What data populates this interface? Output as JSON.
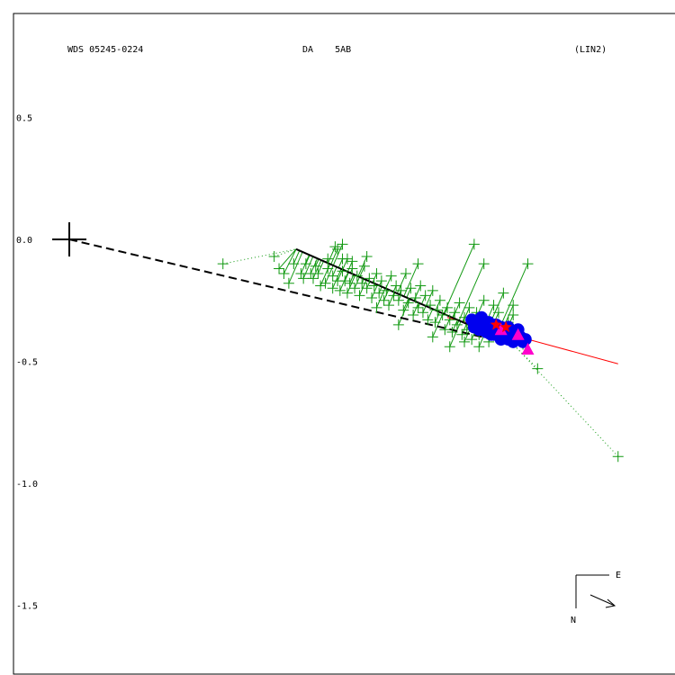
{
  "chart_data": {
    "type": "scatter",
    "header": {
      "left": "WDS 05245-0224",
      "center": "DA    5AB",
      "right": "(LIN2)"
    },
    "ytick_labels": [
      "0.5",
      "0.0",
      "-0.5",
      "-1.0",
      "-1.5"
    ],
    "ytick_values": [
      0.5,
      0.0,
      -0.5,
      -1.0,
      -1.5
    ],
    "ylim": [
      -1.78,
      0.9
    ],
    "xlim": [
      -0.23,
      2.47
    ],
    "grid": false,
    "primary_star": {
      "x": 0.0,
      "y": 0.0
    },
    "compass": {
      "east_label": "E",
      "north_label": "N"
    },
    "colors": {
      "micrometric": "#119911",
      "speckle": "#0000ee",
      "hipparcos": "#ff00cc",
      "recent": "#ff0000",
      "orbit_fit": "#000000",
      "linear_fit": "#ff0000",
      "frame": "#000000"
    },
    "linear_fit_line": {
      "x": [
        1.55,
        2.25
      ],
      "y": [
        -0.32,
        -0.51
      ]
    },
    "black_fit_line": {
      "x": [
        0.93,
        1.82
      ],
      "y": [
        -0.04,
        -0.43
      ]
    },
    "dashed_line": {
      "x": [
        0.0,
        1.82
      ],
      "y": [
        0.0,
        -0.43
      ]
    },
    "series": [
      {
        "name": "micrometric",
        "marker": "plus",
        "points": [
          [
            0.63,
            -0.1
          ],
          [
            0.9,
            -0.18
          ],
          [
            1.01,
            -0.11
          ],
          [
            1.06,
            -0.08
          ],
          [
            1.09,
            -0.03
          ],
          [
            1.1,
            -0.04
          ],
          [
            1.12,
            -0.02
          ],
          [
            1.12,
            -0.08
          ],
          [
            1.14,
            -0.08
          ],
          [
            1.16,
            -0.09
          ],
          [
            0.84,
            -0.07
          ],
          [
            0.86,
            -0.12
          ],
          [
            0.88,
            -0.14
          ],
          [
            0.92,
            -0.1
          ],
          [
            0.95,
            -0.14
          ],
          [
            0.96,
            -0.16
          ],
          [
            0.97,
            -0.1
          ],
          [
            0.99,
            -0.14
          ],
          [
            1.0,
            -0.16
          ],
          [
            1.02,
            -0.14
          ],
          [
            1.03,
            -0.19
          ],
          [
            1.05,
            -0.18
          ],
          [
            1.06,
            -0.12
          ],
          [
            1.08,
            -0.15
          ],
          [
            1.08,
            -0.2
          ],
          [
            1.1,
            -0.17
          ],
          [
            1.11,
            -0.21
          ],
          [
            1.12,
            -0.13
          ],
          [
            1.13,
            -0.17
          ],
          [
            1.14,
            -0.22
          ],
          [
            1.15,
            -0.18
          ],
          [
            1.16,
            -0.12
          ],
          [
            1.17,
            -0.2
          ],
          [
            1.18,
            -0.15
          ],
          [
            1.19,
            -0.23
          ],
          [
            1.2,
            -0.18
          ],
          [
            1.21,
            -0.11
          ],
          [
            1.22,
            -0.2
          ],
          [
            1.23,
            -0.16
          ],
          [
            1.24,
            -0.24
          ],
          [
            1.25,
            -0.19
          ],
          [
            1.26,
            -0.14
          ],
          [
            1.27,
            -0.22
          ],
          [
            1.28,
            -0.17
          ],
          [
            1.29,
            -0.25
          ],
          [
            1.3,
            -0.21
          ],
          [
            1.31,
            -0.27
          ],
          [
            1.32,
            -0.15
          ],
          [
            1.33,
            -0.23
          ],
          [
            1.34,
            -0.19
          ],
          [
            1.35,
            -0.25
          ],
          [
            1.36,
            -0.21
          ],
          [
            1.37,
            -0.29
          ],
          [
            1.38,
            -0.14
          ],
          [
            1.39,
            -0.26
          ],
          [
            1.4,
            -0.2
          ],
          [
            1.41,
            -0.31
          ],
          [
            1.42,
            -0.24
          ],
          [
            1.43,
            -0.28
          ],
          [
            1.44,
            -0.19
          ],
          [
            1.45,
            -0.3
          ],
          [
            1.46,
            -0.23
          ],
          [
            1.47,
            -0.33
          ],
          [
            1.48,
            -0.27
          ],
          [
            1.49,
            -0.21
          ],
          [
            1.5,
            -0.34
          ],
          [
            1.51,
            -0.29
          ],
          [
            1.52,
            -0.25
          ],
          [
            1.53,
            -0.31
          ],
          [
            1.54,
            -0.37
          ],
          [
            1.55,
            -0.28
          ],
          [
            1.56,
            -0.33
          ],
          [
            1.57,
            -0.38
          ],
          [
            1.58,
            -0.3
          ],
          [
            1.59,
            -0.35
          ],
          [
            1.6,
            -0.26
          ],
          [
            1.61,
            -0.39
          ],
          [
            1.62,
            -0.32
          ],
          [
            1.63,
            -0.37
          ],
          [
            1.64,
            -0.28
          ],
          [
            1.65,
            -0.41
          ],
          [
            1.66,
            -0.35
          ],
          [
            1.67,
            -0.3
          ],
          [
            1.68,
            -0.39
          ],
          [
            1.7,
            -0.25
          ],
          [
            1.71,
            -0.33
          ],
          [
            1.72,
            -0.42
          ],
          [
            1.74,
            -0.27
          ],
          [
            1.75,
            -0.36
          ],
          [
            1.76,
            -0.3
          ],
          [
            1.78,
            -0.22
          ],
          [
            1.8,
            -0.34
          ],
          [
            1.82,
            -0.27
          ],
          [
            1.84,
            -0.38
          ],
          [
            1.86,
            -0.43
          ],
          [
            1.88,
            -0.1
          ],
          [
            1.66,
            -0.02
          ],
          [
            1.92,
            -0.53
          ],
          [
            1.22,
            -0.07
          ],
          [
            1.43,
            -0.1
          ],
          [
            1.49,
            -0.4
          ],
          [
            1.56,
            -0.44
          ],
          [
            1.7,
            -0.1
          ],
          [
            1.78,
            -0.4
          ],
          [
            1.82,
            -0.31
          ],
          [
            1.68,
            -0.44
          ],
          [
            1.62,
            -0.42
          ],
          [
            1.26,
            -0.28
          ],
          [
            1.35,
            -0.35
          ],
          [
            2.25,
            -0.89
          ]
        ]
      },
      {
        "name": "speckle",
        "marker": "dot",
        "points": [
          [
            1.65,
            -0.33
          ],
          [
            1.66,
            -0.36
          ],
          [
            1.67,
            -0.34
          ],
          [
            1.68,
            -0.37
          ],
          [
            1.69,
            -0.32
          ],
          [
            1.7,
            -0.35
          ],
          [
            1.71,
            -0.38
          ],
          [
            1.72,
            -0.34
          ],
          [
            1.73,
            -0.36
          ],
          [
            1.74,
            -0.39
          ],
          [
            1.75,
            -0.35
          ],
          [
            1.76,
            -0.38
          ],
          [
            1.77,
            -0.36
          ],
          [
            1.78,
            -0.4
          ],
          [
            1.79,
            -0.37
          ],
          [
            1.8,
            -0.41
          ],
          [
            1.81,
            -0.38
          ],
          [
            1.82,
            -0.42
          ],
          [
            1.83,
            -0.39
          ],
          [
            1.84,
            -0.41
          ],
          [
            1.85,
            -0.4
          ],
          [
            1.86,
            -0.42
          ],
          [
            1.87,
            -0.41
          ],
          [
            1.69,
            -0.37
          ],
          [
            1.73,
            -0.39
          ],
          [
            1.77,
            -0.41
          ],
          [
            1.8,
            -0.36
          ],
          [
            1.84,
            -0.37
          ]
        ]
      },
      {
        "name": "hipparcos",
        "marker": "triangle",
        "points": [
          [
            1.77,
            -0.37
          ],
          [
            1.84,
            -0.39
          ],
          [
            1.88,
            -0.45
          ]
        ]
      },
      {
        "name": "recent",
        "marker": "star",
        "points": [
          [
            1.75,
            -0.35
          ],
          [
            1.79,
            -0.36
          ]
        ]
      }
    ]
  }
}
